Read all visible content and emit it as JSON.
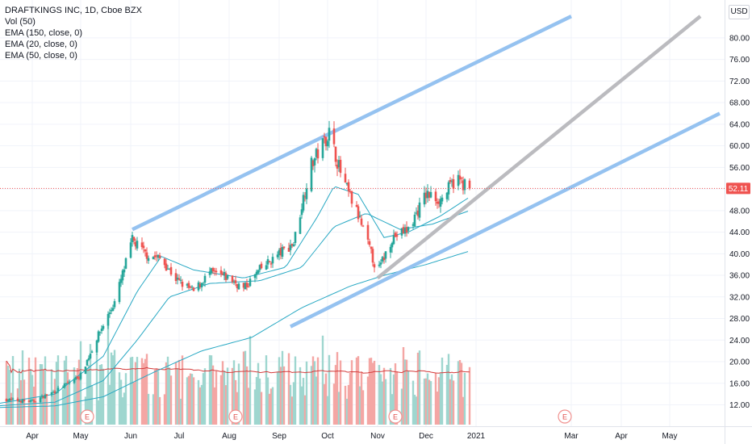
{
  "legend": {
    "title": "DRAFTKINGS INC, 1D, Cboe BZX",
    "vol": "Vol (50)",
    "ema150": "EMA (150, close, 0)",
    "ema20": "EMA (20, close, 0)",
    "ema50": "EMA (50, close, 0)"
  },
  "currency": "USD",
  "price_label": "52.11",
  "earnings_marker": "E",
  "colors": {
    "up": "#26a69a",
    "down": "#ef5350",
    "vol_up": "#9fd6cf",
    "vol_down": "#f4a6a4",
    "ema": "#27a8c3",
    "vol_ma": "#d43c3c",
    "channel": "#90bff0",
    "trend": "#b8b8bc",
    "price_line": "#ef5350"
  },
  "chart_data": {
    "type": "candlestick",
    "ylim": [
      8,
      84
    ],
    "yticks": [
      "12.00",
      "16.00",
      "20.00",
      "24.00",
      "28.00",
      "32.00",
      "36.00",
      "40.00",
      "44.00",
      "48.00",
      "52.00",
      "56.00",
      "60.00",
      "64.00",
      "68.00",
      "72.00",
      "76.00",
      "80.00"
    ],
    "xticks": [
      {
        "label": "Apr",
        "date": "2020-04-01"
      },
      {
        "label": "May",
        "date": "2020-05-01"
      },
      {
        "label": "Jun",
        "date": "2020-06-01"
      },
      {
        "label": "Jul",
        "date": "2020-07-01"
      },
      {
        "label": "Aug",
        "date": "2020-08-01"
      },
      {
        "label": "Sep",
        "date": "2020-09-01"
      },
      {
        "label": "Oct",
        "date": "2020-10-01"
      },
      {
        "label": "Nov",
        "date": "2020-11-01"
      },
      {
        "label": "Dec",
        "date": "2020-12-01"
      },
      {
        "label": "2021",
        "date": "2021-01-01"
      },
      {
        "label": "Mar",
        "date": "2021-03-01"
      },
      {
        "label": "Apr",
        "date": "2021-04-01"
      },
      {
        "label": "May",
        "date": "2021-05-01"
      }
    ],
    "last_price": 52.11,
    "close_anchors": [
      [
        "2020-03-15",
        13.0
      ],
      [
        "2020-04-01",
        12.6
      ],
      [
        "2020-04-15",
        14.5
      ],
      [
        "2020-05-01",
        17.5
      ],
      [
        "2020-05-12",
        25.0
      ],
      [
        "2020-05-22",
        31.0
      ],
      [
        "2020-06-02",
        42.5
      ],
      [
        "2020-06-10",
        40.0
      ],
      [
        "2020-06-20",
        39.0
      ],
      [
        "2020-06-30",
        35.0
      ],
      [
        "2020-07-10",
        33.0
      ],
      [
        "2020-07-20",
        36.5
      ],
      [
        "2020-08-01",
        35.5
      ],
      [
        "2020-08-10",
        33.5
      ],
      [
        "2020-08-20",
        37.0
      ],
      [
        "2020-09-01",
        40.0
      ],
      [
        "2020-09-10",
        42.0
      ],
      [
        "2020-09-20",
        56.0
      ],
      [
        "2020-10-02",
        62.5
      ],
      [
        "2020-10-10",
        54.0
      ],
      [
        "2020-10-20",
        47.0
      ],
      [
        "2020-11-01",
        36.5
      ],
      [
        "2020-11-10",
        43.0
      ],
      [
        "2020-11-20",
        44.5
      ],
      [
        "2020-12-01",
        51.0
      ],
      [
        "2020-12-10",
        50.0
      ],
      [
        "2020-12-20",
        54.0
      ],
      [
        "2020-12-28",
        52.11
      ]
    ],
    "ema_anchors": {
      "ema20": [
        [
          "2020-03-10",
          12.2
        ],
        [
          "2020-04-15",
          14.0
        ],
        [
          "2020-05-15",
          21.0
        ],
        [
          "2020-06-05",
          33.0
        ],
        [
          "2020-06-20",
          39.5
        ],
        [
          "2020-07-10",
          37.0
        ],
        [
          "2020-08-10",
          35.5
        ],
        [
          "2020-09-05",
          37.5
        ],
        [
          "2020-09-25",
          47.0
        ],
        [
          "2020-10-05",
          52.5
        ],
        [
          "2020-10-20",
          51.0
        ],
        [
          "2020-11-05",
          43.0
        ],
        [
          "2020-11-20",
          44.0
        ],
        [
          "2020-12-10",
          47.0
        ],
        [
          "2020-12-28",
          50.5
        ]
      ],
      "ema50": [
        [
          "2020-03-10",
          11.8
        ],
        [
          "2020-04-15",
          12.5
        ],
        [
          "2020-05-15",
          16.5
        ],
        [
          "2020-06-05",
          24.0
        ],
        [
          "2020-06-25",
          32.0
        ],
        [
          "2020-07-20",
          34.5
        ],
        [
          "2020-08-20",
          35.0
        ],
        [
          "2020-09-15",
          37.5
        ],
        [
          "2020-10-05",
          45.0
        ],
        [
          "2020-10-25",
          47.5
        ],
        [
          "2020-11-15",
          44.5
        ],
        [
          "2020-12-05",
          45.5
        ],
        [
          "2020-12-28",
          48.0
        ]
      ],
      "ema150": [
        [
          "2020-03-10",
          11.5
        ],
        [
          "2020-04-15",
          11.8
        ],
        [
          "2020-05-15",
          13.5
        ],
        [
          "2020-06-15",
          18.0
        ],
        [
          "2020-07-15",
          22.0
        ],
        [
          "2020-08-15",
          24.5
        ],
        [
          "2020-09-15",
          30.0
        ],
        [
          "2020-10-15",
          34.0
        ],
        [
          "2020-11-05",
          36.0
        ],
        [
          "2020-12-01",
          38.0
        ],
        [
          "2020-12-28",
          40.5
        ]
      ]
    },
    "drawings": {
      "upper_channel": [
        [
          "2020-06-02",
          44.5
        ],
        [
          "2021-03-01",
          84.0
        ]
      ],
      "lower_channel": [
        [
          "2020-09-08",
          26.5
        ],
        [
          "2021-06-01",
          66.0
        ]
      ],
      "trendline": [
        [
          "2020-11-01",
          35.5
        ],
        [
          "2021-05-20",
          84.0
        ]
      ]
    },
    "earnings_dates": [
      "2020-05-05",
      "2020-08-05",
      "2020-11-12",
      "2021-02-25"
    ]
  }
}
